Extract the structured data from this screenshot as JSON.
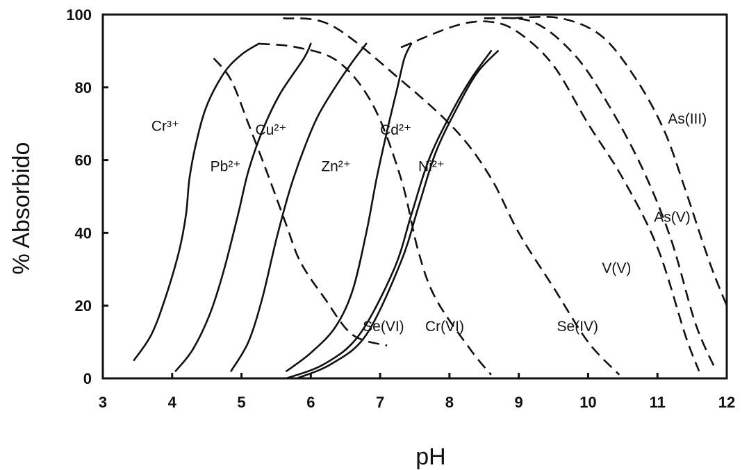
{
  "chart_data": {
    "type": "line",
    "xlabel": "pH",
    "ylabel": "% Absorbido",
    "xlim": [
      3,
      12
    ],
    "ylim": [
      0,
      100
    ],
    "xticks": [
      "3",
      "4",
      "5",
      "6",
      "7",
      "8",
      "9",
      "10",
      "11",
      "12"
    ],
    "yticks": [
      "0",
      "20",
      "40",
      "60",
      "80",
      "100"
    ],
    "grid": false,
    "series": [
      {
        "name": "Cr³⁺",
        "style": "solid",
        "label_at": [
          3.7,
          68
        ],
        "label_parts": [
          "Cr",
          "3+"
        ],
        "points": [
          [
            3.45,
            5
          ],
          [
            3.7,
            12
          ],
          [
            3.9,
            22
          ],
          [
            4.1,
            35
          ],
          [
            4.2,
            45
          ],
          [
            4.25,
            55
          ],
          [
            4.35,
            65
          ],
          [
            4.5,
            75
          ],
          [
            4.75,
            84
          ],
          [
            5.0,
            89
          ],
          [
            5.25,
            92
          ]
        ]
      },
      {
        "name": "Pb²⁺",
        "style": "solid",
        "label_at": [
          4.55,
          57
        ],
        "label_parts": [
          "Pb",
          "2+"
        ],
        "points": [
          [
            4.05,
            2
          ],
          [
            4.3,
            8
          ],
          [
            4.55,
            18
          ],
          [
            4.75,
            30
          ],
          [
            4.95,
            45
          ],
          [
            5.1,
            57
          ],
          [
            5.3,
            68
          ],
          [
            5.55,
            78
          ],
          [
            5.9,
            88
          ],
          [
            6.0,
            92
          ]
        ]
      },
      {
        "name": "Cu²⁺",
        "style": "solid",
        "label_at": [
          5.2,
          67
        ],
        "label_parts": [
          "Cu",
          "2+"
        ],
        "points": [
          [
            4.85,
            2
          ],
          [
            5.1,
            10
          ],
          [
            5.3,
            22
          ],
          [
            5.5,
            38
          ],
          [
            5.7,
            52
          ],
          [
            5.9,
            63
          ],
          [
            6.1,
            72
          ],
          [
            6.35,
            80
          ],
          [
            6.6,
            87
          ],
          [
            6.8,
            92
          ]
        ]
      },
      {
        "name": "Zn²⁺",
        "style": "solid",
        "label_at": [
          6.15,
          57
        ],
        "label_parts": [
          "Zn",
          "2+"
        ],
        "points": [
          [
            5.65,
            2
          ],
          [
            6.0,
            7
          ],
          [
            6.35,
            14
          ],
          [
            6.6,
            24
          ],
          [
            6.8,
            40
          ],
          [
            6.95,
            55
          ],
          [
            7.1,
            68
          ],
          [
            7.25,
            80
          ],
          [
            7.35,
            88
          ],
          [
            7.45,
            92
          ]
        ]
      },
      {
        "name": "Cd²⁺",
        "style": "solid",
        "label_at": [
          7.0,
          67
        ],
        "label_parts": [
          "Cd",
          "2+"
        ],
        "points": [
          [
            5.65,
            0
          ],
          [
            6.2,
            4
          ],
          [
            6.7,
            12
          ],
          [
            7.2,
            30
          ],
          [
            7.45,
            45
          ],
          [
            7.7,
            60
          ],
          [
            8.0,
            72
          ],
          [
            8.3,
            82
          ],
          [
            8.6,
            90
          ]
        ]
      },
      {
        "name": "Ni²⁺",
        "style": "solid",
        "label_at": [
          7.55,
          57
        ],
        "label_parts": [
          "Ni",
          "2+"
        ],
        "points": [
          [
            5.8,
            0
          ],
          [
            6.3,
            4
          ],
          [
            6.8,
            12
          ],
          [
            7.3,
            32
          ],
          [
            7.55,
            47
          ],
          [
            7.8,
            62
          ],
          [
            8.1,
            74
          ],
          [
            8.4,
            84
          ],
          [
            8.7,
            90
          ]
        ]
      },
      {
        "name": "Se(VI)",
        "style": "dashed",
        "label_at": [
          6.75,
          13
        ],
        "points": [
          [
            4.6,
            88
          ],
          [
            4.85,
            82
          ],
          [
            5.1,
            70
          ],
          [
            5.4,
            55
          ],
          [
            5.65,
            42
          ],
          [
            5.85,
            32
          ],
          [
            6.2,
            22
          ],
          [
            6.6,
            12
          ],
          [
            7.1,
            9
          ]
        ]
      },
      {
        "name": "Cr(VI)",
        "style": "dashed",
        "label_at": [
          7.65,
          13
        ],
        "points": [
          [
            5.25,
            92
          ],
          [
            5.8,
            91
          ],
          [
            6.4,
            87
          ],
          [
            6.9,
            75
          ],
          [
            7.3,
            55
          ],
          [
            7.55,
            35
          ],
          [
            7.8,
            22
          ],
          [
            8.3,
            8
          ],
          [
            8.6,
            1
          ]
        ]
      },
      {
        "name": "Se(IV)",
        "style": "dashed",
        "label_at": [
          9.55,
          13
        ],
        "points": [
          [
            5.6,
            99
          ],
          [
            6.3,
            97
          ],
          [
            7.3,
            82
          ],
          [
            8.1,
            68
          ],
          [
            8.6,
            55
          ],
          [
            9.0,
            40
          ],
          [
            9.5,
            25
          ],
          [
            10.0,
            10
          ],
          [
            10.45,
            1
          ]
        ]
      },
      {
        "name": "V(V)",
        "style": "dashed",
        "label_at": [
          10.2,
          29
        ],
        "points": [
          [
            7.3,
            91
          ],
          [
            8.1,
            97
          ],
          [
            8.6,
            98
          ],
          [
            9.0,
            95
          ],
          [
            9.5,
            86
          ],
          [
            10.0,
            70
          ],
          [
            10.5,
            55
          ],
          [
            11.0,
            36
          ],
          [
            11.4,
            12
          ],
          [
            11.6,
            2
          ]
        ]
      },
      {
        "name": "As(V)",
        "style": "dashed",
        "label_at": [
          10.95,
          43
        ],
        "points": [
          [
            8.5,
            99
          ],
          [
            9.2,
            98
          ],
          [
            9.8,
            89
          ],
          [
            10.3,
            75
          ],
          [
            10.8,
            57
          ],
          [
            11.2,
            38
          ],
          [
            11.55,
            15
          ],
          [
            11.85,
            2
          ]
        ]
      },
      {
        "name": "As(III)",
        "style": "dashed",
        "label_at": [
          11.15,
          70
        ],
        "points": [
          [
            8.9,
            99
          ],
          [
            9.6,
            99
          ],
          [
            10.2,
            94
          ],
          [
            10.7,
            82
          ],
          [
            11.1,
            68
          ],
          [
            11.4,
            52
          ],
          [
            11.75,
            32
          ],
          [
            12.0,
            20
          ]
        ]
      }
    ]
  }
}
